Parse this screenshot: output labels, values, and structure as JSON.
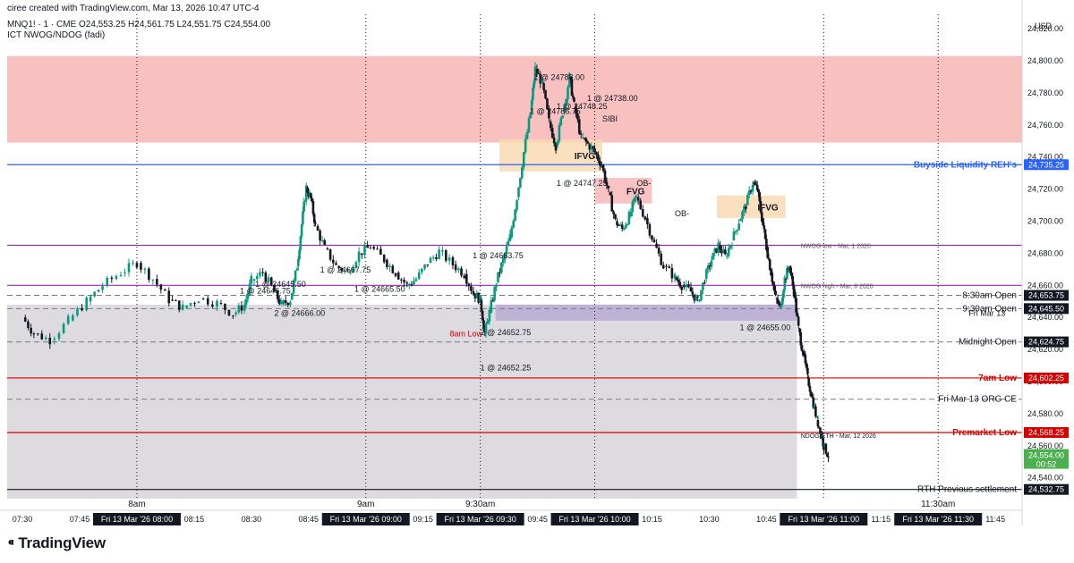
{
  "header": {
    "created_by": "ciree created with TradingView.com, Mar 13, 2026 10:47 UTC-4",
    "symbol_line": "MNQ1! · 1 · CME  O24,553.25  H24,561.75  L24,551.75  C24,554.00",
    "indicator": "ICT NWOG/NDOG (fadi)"
  },
  "footer": {
    "brand": "TradingView"
  },
  "chart_data": {
    "type": "candlestick",
    "currency_label": "USD",
    "y_range": [
      24527,
      24829
    ],
    "y_ticks": [
      24540,
      24560,
      24580,
      24600,
      24620,
      24640,
      24660,
      24680,
      24700,
      24720,
      24740,
      24760,
      24780,
      24800,
      24820
    ],
    "y_tick_labels": [
      "24,540.00",
      "24,560.00",
      "24,580.00",
      "24,600.00",
      "24,620.00",
      "24,640.00",
      "24,660.00",
      "24,680.00",
      "24,700.00",
      "24,720.00",
      "24,740.00",
      "24,760.00",
      "24,780.00",
      "24,800.00",
      "24,820.00"
    ],
    "x_range": [
      "07:26",
      "11:52"
    ],
    "x_ticks": [
      {
        "t": "07:30",
        "label": "07:30",
        "boxed": false
      },
      {
        "t": "07:45",
        "label": "07:45",
        "boxed": false
      },
      {
        "t": "08:00",
        "label": "Fri 13 Mar '26  08:00",
        "boxed": true
      },
      {
        "t": "08:15",
        "label": "08:15",
        "boxed": false
      },
      {
        "t": "08:30",
        "label": "08:30",
        "boxed": false
      },
      {
        "t": "08:45",
        "label": "08:45",
        "boxed": false
      },
      {
        "t": "09:00",
        "label": "Fri 13 Mar '26  09:00",
        "boxed": true
      },
      {
        "t": "09:15",
        "label": "09:15",
        "boxed": false
      },
      {
        "t": "09:30",
        "label": "Fri 13 Mar '26  09:30",
        "boxed": true
      },
      {
        "t": "09:45",
        "label": "09:45",
        "boxed": false
      },
      {
        "t": "10:00",
        "label": "Fri 13 Mar '26  10:00",
        "boxed": true
      },
      {
        "t": "10:15",
        "label": "10:15",
        "boxed": false
      },
      {
        "t": "10:30",
        "label": "10:30",
        "boxed": false
      },
      {
        "t": "10:45",
        "label": "10:45",
        "boxed": false
      },
      {
        "t": "11:00",
        "label": "Fri 13 Mar '26  11:00",
        "boxed": true
      },
      {
        "t": "11:15",
        "label": "11:15",
        "boxed": false
      },
      {
        "t": "11:30",
        "label": "Fri 13 Mar '26  11:30",
        "boxed": true
      },
      {
        "t": "11:45",
        "label": "11:45",
        "boxed": false
      }
    ],
    "session_markers": [
      {
        "t": "08:00",
        "label": "8am"
      },
      {
        "t": "09:00",
        "label": "9am"
      },
      {
        "t": "09:30",
        "label": "9:30am"
      },
      {
        "t": "10:00",
        "label": ""
      },
      {
        "t": "11:00",
        "label": ""
      },
      {
        "t": "11:30",
        "label": "11:30am"
      }
    ],
    "zones": [
      {
        "name": "premium-zone",
        "t0": "07:26",
        "t1": "11:52",
        "p_low": 24749,
        "p_high": 24803,
        "color": "#f8b0b0"
      },
      {
        "name": "discount-zone",
        "t0": "07:26",
        "t1": "10:53",
        "p_low": 24527,
        "p_high": 24648,
        "color": "#d4d1d8"
      },
      {
        "name": "ndog-zone",
        "t0": "09:34",
        "t1": "10:53",
        "p_low": 24638,
        "p_high": 24648,
        "color": "#b7a8d2"
      },
      {
        "name": "ifvg-zone-1",
        "t0": "09:35",
        "t1": "10:02",
        "p_low": 24731,
        "p_high": 24751,
        "color": "#fad8b0",
        "label": "IFVG"
      },
      {
        "name": "ifvg-zone-2",
        "t0": "10:32",
        "t1": "10:50",
        "p_low": 24702,
        "p_high": 24716,
        "color": "#fad8b0",
        "label": "IFVG"
      },
      {
        "name": "fvg-zone",
        "t0": "10:00",
        "t1": "10:15",
        "p_low": 24711,
        "p_high": 24727,
        "color": "#f7b4b4",
        "label": "FVG"
      }
    ],
    "levels": [
      {
        "name": "buyside-liquidity",
        "price": 24735.25,
        "label": "Buyside Liquidity REH's",
        "value_label": "24,735.25",
        "color": "#2962ff",
        "style": "solid"
      },
      {
        "name": "nwog-low",
        "price": 24685,
        "label": "NWOG low - Mar, 1 2026",
        "color": "#9c27b0",
        "style": "solid"
      },
      {
        "name": "nwog-high",
        "price": 24660,
        "label": "NWOG high - Mar, 8 2026",
        "color": "#9c27b0",
        "style": "solid"
      },
      {
        "name": "830-open",
        "price": 24653.75,
        "label": "8:30am Open",
        "value_label": "24,653.75",
        "color": "#787b86",
        "style": "dashed"
      },
      {
        "name": "930-open",
        "price": 24645.5,
        "label": "9:30am Open",
        "value_label": "24,645.50",
        "color": "#787b86",
        "style": "dashed"
      },
      {
        "name": "midnight-open",
        "price": 24624.75,
        "label": "Midnight Open",
        "value_label": "24,624.75",
        "color": "#787b86",
        "style": "dashed"
      },
      {
        "name": "7am-low",
        "price": 24602.25,
        "label": "7am Low",
        "value_label": "24,602.25",
        "color": "#d50000",
        "style": "solid"
      },
      {
        "name": "org-ce",
        "price": 24589,
        "label": "Fri Mar 13 ORG CE",
        "color": "#787b86",
        "style": "dashed"
      },
      {
        "name": "premarket-low",
        "price": 24568.25,
        "label": "Premarket Low",
        "value_label": "24,568.25",
        "color": "#d50000",
        "style": "solid"
      },
      {
        "name": "rth-settlement",
        "price": 24532.75,
        "label": "RTH Previous settlement",
        "value_label": "24,532.75",
        "color": "#131722",
        "style": "solid"
      }
    ],
    "extra_labels": [
      {
        "text": "Fri Mar 13",
        "price": 24641,
        "t": "11:38"
      },
      {
        "text": "NDOG ETH - Mar, 12 2026",
        "price": 24565,
        "t": "10:54"
      },
      {
        "text": "8am Low",
        "price": 24628,
        "t": "09:22",
        "color": "#d50000"
      },
      {
        "text": "SIBI",
        "price": 24762,
        "t": "10:02"
      },
      {
        "text": "OB-",
        "price": 24722,
        "t": "10:11"
      },
      {
        "text": "OB-",
        "price": 24703,
        "t": "10:21"
      }
    ],
    "trades": [
      {
        "text": "1 @ 24667.75",
        "t": "08:48",
        "price": 24668
      },
      {
        "text": "1 @ 24645.50",
        "t": "08:31",
        "price": 24659
      },
      {
        "text": "1 @ 24646.75",
        "t": "08:27",
        "price": 24655
      },
      {
        "text": "2 @ 24666.00",
        "t": "08:36",
        "price": 24641
      },
      {
        "text": "1 @ 24665.50",
        "t": "08:57",
        "price": 24656
      },
      {
        "text": "1 @ 24663.75",
        "t": "09:28",
        "price": 24677
      },
      {
        "text": "2 @ 24652.75",
        "t": "09:30",
        "price": 24629
      },
      {
        "text": "1 @ 24652.25",
        "t": "09:30",
        "price": 24607
      },
      {
        "text": "1 @ 24788.00",
        "t": "09:44",
        "price": 24788
      },
      {
        "text": "1 @ 24786.75",
        "t": "09:43",
        "price": 24767
      },
      {
        "text": "1 @ 24748.25",
        "t": "09:50",
        "price": 24770
      },
      {
        "text": "1 @ 24738.00",
        "t": "09:58",
        "price": 24775
      },
      {
        "text": "1 @ 24747.25",
        "t": "09:50",
        "price": 24722
      },
      {
        "text": "1 @ 24655.00",
        "t": "10:38",
        "price": 24632
      }
    ],
    "current_price": {
      "price": 24554.0,
      "value_label": "24,554.00",
      "countdown": "00:52"
    },
    "price_path": [
      [
        7.5,
        24640
      ],
      [
        7.55,
        24630
      ],
      [
        7.62,
        24626
      ],
      [
        7.7,
        24638
      ],
      [
        7.78,
        24650
      ],
      [
        7.85,
        24660
      ],
      [
        7.93,
        24668
      ],
      [
        8.0,
        24674
      ],
      [
        8.07,
        24664
      ],
      [
        8.14,
        24651
      ],
      [
        8.2,
        24646
      ],
      [
        8.27,
        24652
      ],
      [
        8.35,
        24649
      ],
      [
        8.42,
        24642
      ],
      [
        8.47,
        24648
      ],
      [
        8.5,
        24663
      ],
      [
        8.55,
        24668
      ],
      [
        8.6,
        24656
      ],
      [
        8.63,
        24648
      ],
      [
        8.67,
        24651
      ],
      [
        8.7,
        24672
      ],
      [
        8.72,
        24698
      ],
      [
        8.74,
        24721
      ],
      [
        8.76,
        24714
      ],
      [
        8.78,
        24697
      ],
      [
        8.82,
        24683
      ],
      [
        8.87,
        24672
      ],
      [
        8.92,
        24668
      ],
      [
        8.97,
        24680
      ],
      [
        9.02,
        24684
      ],
      [
        9.08,
        24676
      ],
      [
        9.13,
        24668
      ],
      [
        9.18,
        24660
      ],
      [
        9.22,
        24664
      ],
      [
        9.27,
        24674
      ],
      [
        9.32,
        24681
      ],
      [
        9.38,
        24673
      ],
      [
        9.43,
        24667
      ],
      [
        9.47,
        24655
      ],
      [
        9.5,
        24651
      ],
      [
        9.52,
        24630
      ],
      [
        9.54,
        24643
      ],
      [
        9.57,
        24662
      ],
      [
        9.6,
        24676
      ],
      [
        9.63,
        24690
      ],
      [
        9.66,
        24715
      ],
      [
        9.69,
        24743
      ],
      [
        9.72,
        24768
      ],
      [
        9.74,
        24795
      ],
      [
        9.77,
        24786
      ],
      [
        9.8,
        24762
      ],
      [
        9.83,
        24747
      ],
      [
        9.86,
        24768
      ],
      [
        9.89,
        24790
      ],
      [
        9.91,
        24772
      ],
      [
        9.94,
        24752
      ],
      [
        9.97,
        24748
      ],
      [
        10.0,
        24743
      ],
      [
        10.03,
        24735
      ],
      [
        10.06,
        24718
      ],
      [
        10.09,
        24700
      ],
      [
        10.12,
        24695
      ],
      [
        10.15,
        24703
      ],
      [
        10.18,
        24715
      ],
      [
        10.22,
        24702
      ],
      [
        10.26,
        24686
      ],
      [
        10.3,
        24672
      ],
      [
        10.35,
        24665
      ],
      [
        10.38,
        24660
      ],
      [
        10.42,
        24656
      ],
      [
        10.45,
        24650
      ],
      [
        10.48,
        24664
      ],
      [
        10.51,
        24676
      ],
      [
        10.54,
        24685
      ],
      [
        10.57,
        24678
      ],
      [
        10.6,
        24688
      ],
      [
        10.63,
        24700
      ],
      [
        10.66,
        24710
      ],
      [
        10.69,
        24724
      ],
      [
        10.71,
        24720
      ],
      [
        10.73,
        24702
      ],
      [
        10.75,
        24684
      ],
      [
        10.77,
        24668
      ],
      [
        10.79,
        24652
      ],
      [
        10.81,
        24646
      ],
      [
        10.83,
        24664
      ],
      [
        10.85,
        24672
      ],
      [
        10.87,
        24656
      ],
      [
        10.89,
        24633
      ],
      [
        10.91,
        24618
      ],
      [
        10.93,
        24602
      ],
      [
        10.95,
        24590
      ],
      [
        10.97,
        24576
      ],
      [
        10.99,
        24568
      ],
      [
        11.0,
        24560
      ],
      [
        11.02,
        24554
      ]
    ]
  }
}
